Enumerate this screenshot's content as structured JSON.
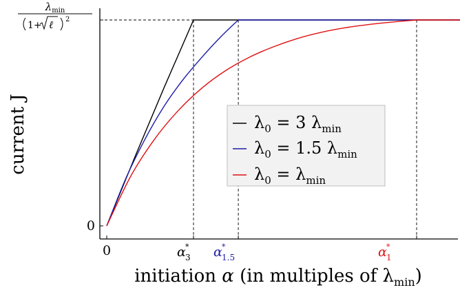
{
  "chart_data": {
    "type": "line",
    "xlabel": "initiation α (in multiples of λmin)",
    "ylabel": "current J",
    "x_ticks": [
      {
        "label": "0",
        "value": 0,
        "color": "#000000"
      },
      {
        "label": "α*3",
        "value": 0.91,
        "color": "#000000"
      },
      {
        "label": "α*1.5",
        "value": 1.38,
        "color": "#1a1aa6"
      },
      {
        "label": "α*1",
        "value": 3.25,
        "color": "#e01010"
      }
    ],
    "y_ticks": [
      {
        "label": "0",
        "value": 0
      },
      {
        "label": "λmin/(1+√ℓ)^2",
        "value": 1
      }
    ],
    "xlim": [
      -0.05,
      4.05
    ],
    "ylim": [
      0,
      1.04
    ],
    "grid": false,
    "legend_position": "center-right",
    "series": [
      {
        "name": "λ0 = 3 λmin",
        "color": "#000000",
        "x": [
          0,
          0.3,
          0.6,
          0.91,
          1.5,
          2.5,
          4.05
        ],
        "y": [
          0,
          0.34,
          0.67,
          1,
          1,
          1,
          1
        ]
      },
      {
        "name": "λ0 = 1.5 λmin",
        "color": "#1a1aa6",
        "x": [
          0,
          0.2,
          0.4,
          0.6,
          0.8,
          1.0,
          1.2,
          1.38,
          2.0,
          3.0,
          4.05
        ],
        "y": [
          0,
          0.23,
          0.42,
          0.58,
          0.71,
          0.82,
          0.92,
          1,
          1,
          1,
          1
        ]
      },
      {
        "name": "λ0 = λmin",
        "color": "#e01010",
        "x": [
          0,
          0.25,
          0.5,
          0.75,
          1.0,
          1.25,
          1.5,
          1.75,
          2.0,
          2.25,
          2.5,
          2.75,
          3.0,
          3.25,
          3.6,
          4.05
        ],
        "y": [
          0,
          0.24,
          0.42,
          0.56,
          0.67,
          0.755,
          0.82,
          0.87,
          0.91,
          0.94,
          0.962,
          0.978,
          0.99,
          1,
          1,
          1
        ]
      }
    ]
  }
}
